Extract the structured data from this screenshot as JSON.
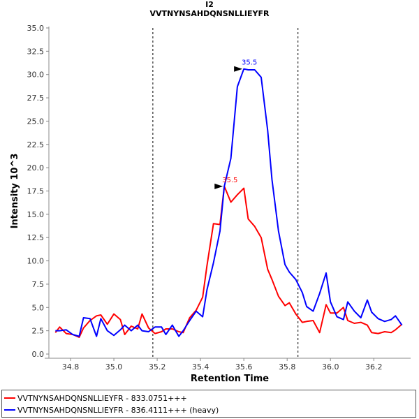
{
  "chart_data": {
    "type": "line",
    "title": "I2",
    "subtitle": "VVTNYNSAHDQNSNLLIEYFR",
    "xlabel": "Retention Time",
    "ylabel": "Intensity 10^3",
    "xlim": [
      34.7,
      36.37
    ],
    "ylim": [
      0,
      35
    ],
    "xticks": [
      "34.8",
      "35.0",
      "35.2",
      "35.4",
      "35.6",
      "35.8",
      "36.0",
      "36.2"
    ],
    "yticks": [
      "0.0",
      "2.5",
      "5.0",
      "7.5",
      "10.0",
      "12.5",
      "15.0",
      "17.5",
      "20.0",
      "22.5",
      "25.0",
      "27.5",
      "30.0",
      "32.5",
      "35.0"
    ],
    "grid": false,
    "legend_position": "bottom",
    "vlines": [
      35.18,
      35.85
    ],
    "series": [
      {
        "name": "VVTNYNSAHDQNSNLLIEYFR - 833.0751+++",
        "color": "#ff0000",
        "x": [
          34.73,
          34.75,
          34.78,
          34.81,
          34.84,
          34.86,
          34.89,
          34.92,
          34.94,
          34.97,
          35.0,
          35.03,
          35.05,
          35.08,
          35.11,
          35.13,
          35.16,
          35.19,
          35.22,
          35.24,
          35.27,
          35.3,
          35.32,
          35.35,
          35.38,
          35.41,
          35.43,
          35.46,
          35.49,
          35.51,
          35.54,
          35.57,
          35.6,
          35.62,
          35.65,
          35.68,
          35.71,
          35.73,
          35.76,
          35.79,
          35.81,
          35.84,
          35.87,
          35.89,
          35.92,
          35.95,
          35.98,
          36.0,
          36.03,
          36.06,
          36.08,
          36.11,
          36.14,
          36.17,
          36.19,
          36.22,
          36.25,
          36.28,
          36.3,
          36.33
        ],
        "y": [
          2.3,
          2.9,
          2.2,
          2.1,
          1.8,
          2.8,
          3.6,
          4.1,
          4.2,
          3.2,
          4.3,
          3.7,
          2.1,
          3.0,
          2.7,
          4.3,
          2.8,
          2.2,
          2.4,
          2.7,
          2.7,
          2.4,
          2.3,
          3.9,
          4.7,
          6.1,
          9.5,
          14.0,
          13.9,
          18.0,
          16.3,
          17.1,
          17.8,
          14.5,
          13.7,
          12.5,
          9.1,
          8.0,
          6.2,
          5.2,
          5.5,
          4.3,
          3.4,
          3.5,
          3.6,
          2.3,
          5.3,
          4.4,
          4.4,
          5.0,
          3.6,
          3.3,
          3.4,
          3.1,
          2.3,
          2.2,
          2.4,
          2.3,
          2.6,
          3.2
        ],
        "peak_label": "35.5"
      },
      {
        "name": "VVTNYNSAHDQNSNLLIEYFR - 836.4111+++ (heavy)",
        "color": "#0000ff",
        "x": [
          34.73,
          34.75,
          34.78,
          34.81,
          34.84,
          34.86,
          34.89,
          34.92,
          34.94,
          34.97,
          35.0,
          35.03,
          35.05,
          35.08,
          35.11,
          35.13,
          35.16,
          35.19,
          35.22,
          35.24,
          35.27,
          35.3,
          35.32,
          35.35,
          35.38,
          35.41,
          35.43,
          35.46,
          35.49,
          35.51,
          35.54,
          35.57,
          35.6,
          35.62,
          35.65,
          35.68,
          35.71,
          35.73,
          35.76,
          35.79,
          35.81,
          35.84,
          35.87,
          35.89,
          35.92,
          35.95,
          35.98,
          36.0,
          36.03,
          36.06,
          36.08,
          36.11,
          36.14,
          36.17,
          36.19,
          36.22,
          36.25,
          36.28,
          36.3,
          36.33
        ],
        "y": [
          2.5,
          2.5,
          2.6,
          2.1,
          1.9,
          3.9,
          3.8,
          1.9,
          3.8,
          2.5,
          2.0,
          2.6,
          3.1,
          2.5,
          3.1,
          2.5,
          2.4,
          2.9,
          2.9,
          2.1,
          3.1,
          1.9,
          2.5,
          3.6,
          4.6,
          4.0,
          6.9,
          9.8,
          13.2,
          18.0,
          21.0,
          28.7,
          30.6,
          30.5,
          30.5,
          29.7,
          24.0,
          18.7,
          13.2,
          9.6,
          8.8,
          8.0,
          6.6,
          5.1,
          4.6,
          6.5,
          8.7,
          5.6,
          4.0,
          3.7,
          5.6,
          4.6,
          3.9,
          5.8,
          4.5,
          3.8,
          3.5,
          3.7,
          4.1,
          3.1
        ],
        "peak_label": "35.5"
      }
    ]
  }
}
